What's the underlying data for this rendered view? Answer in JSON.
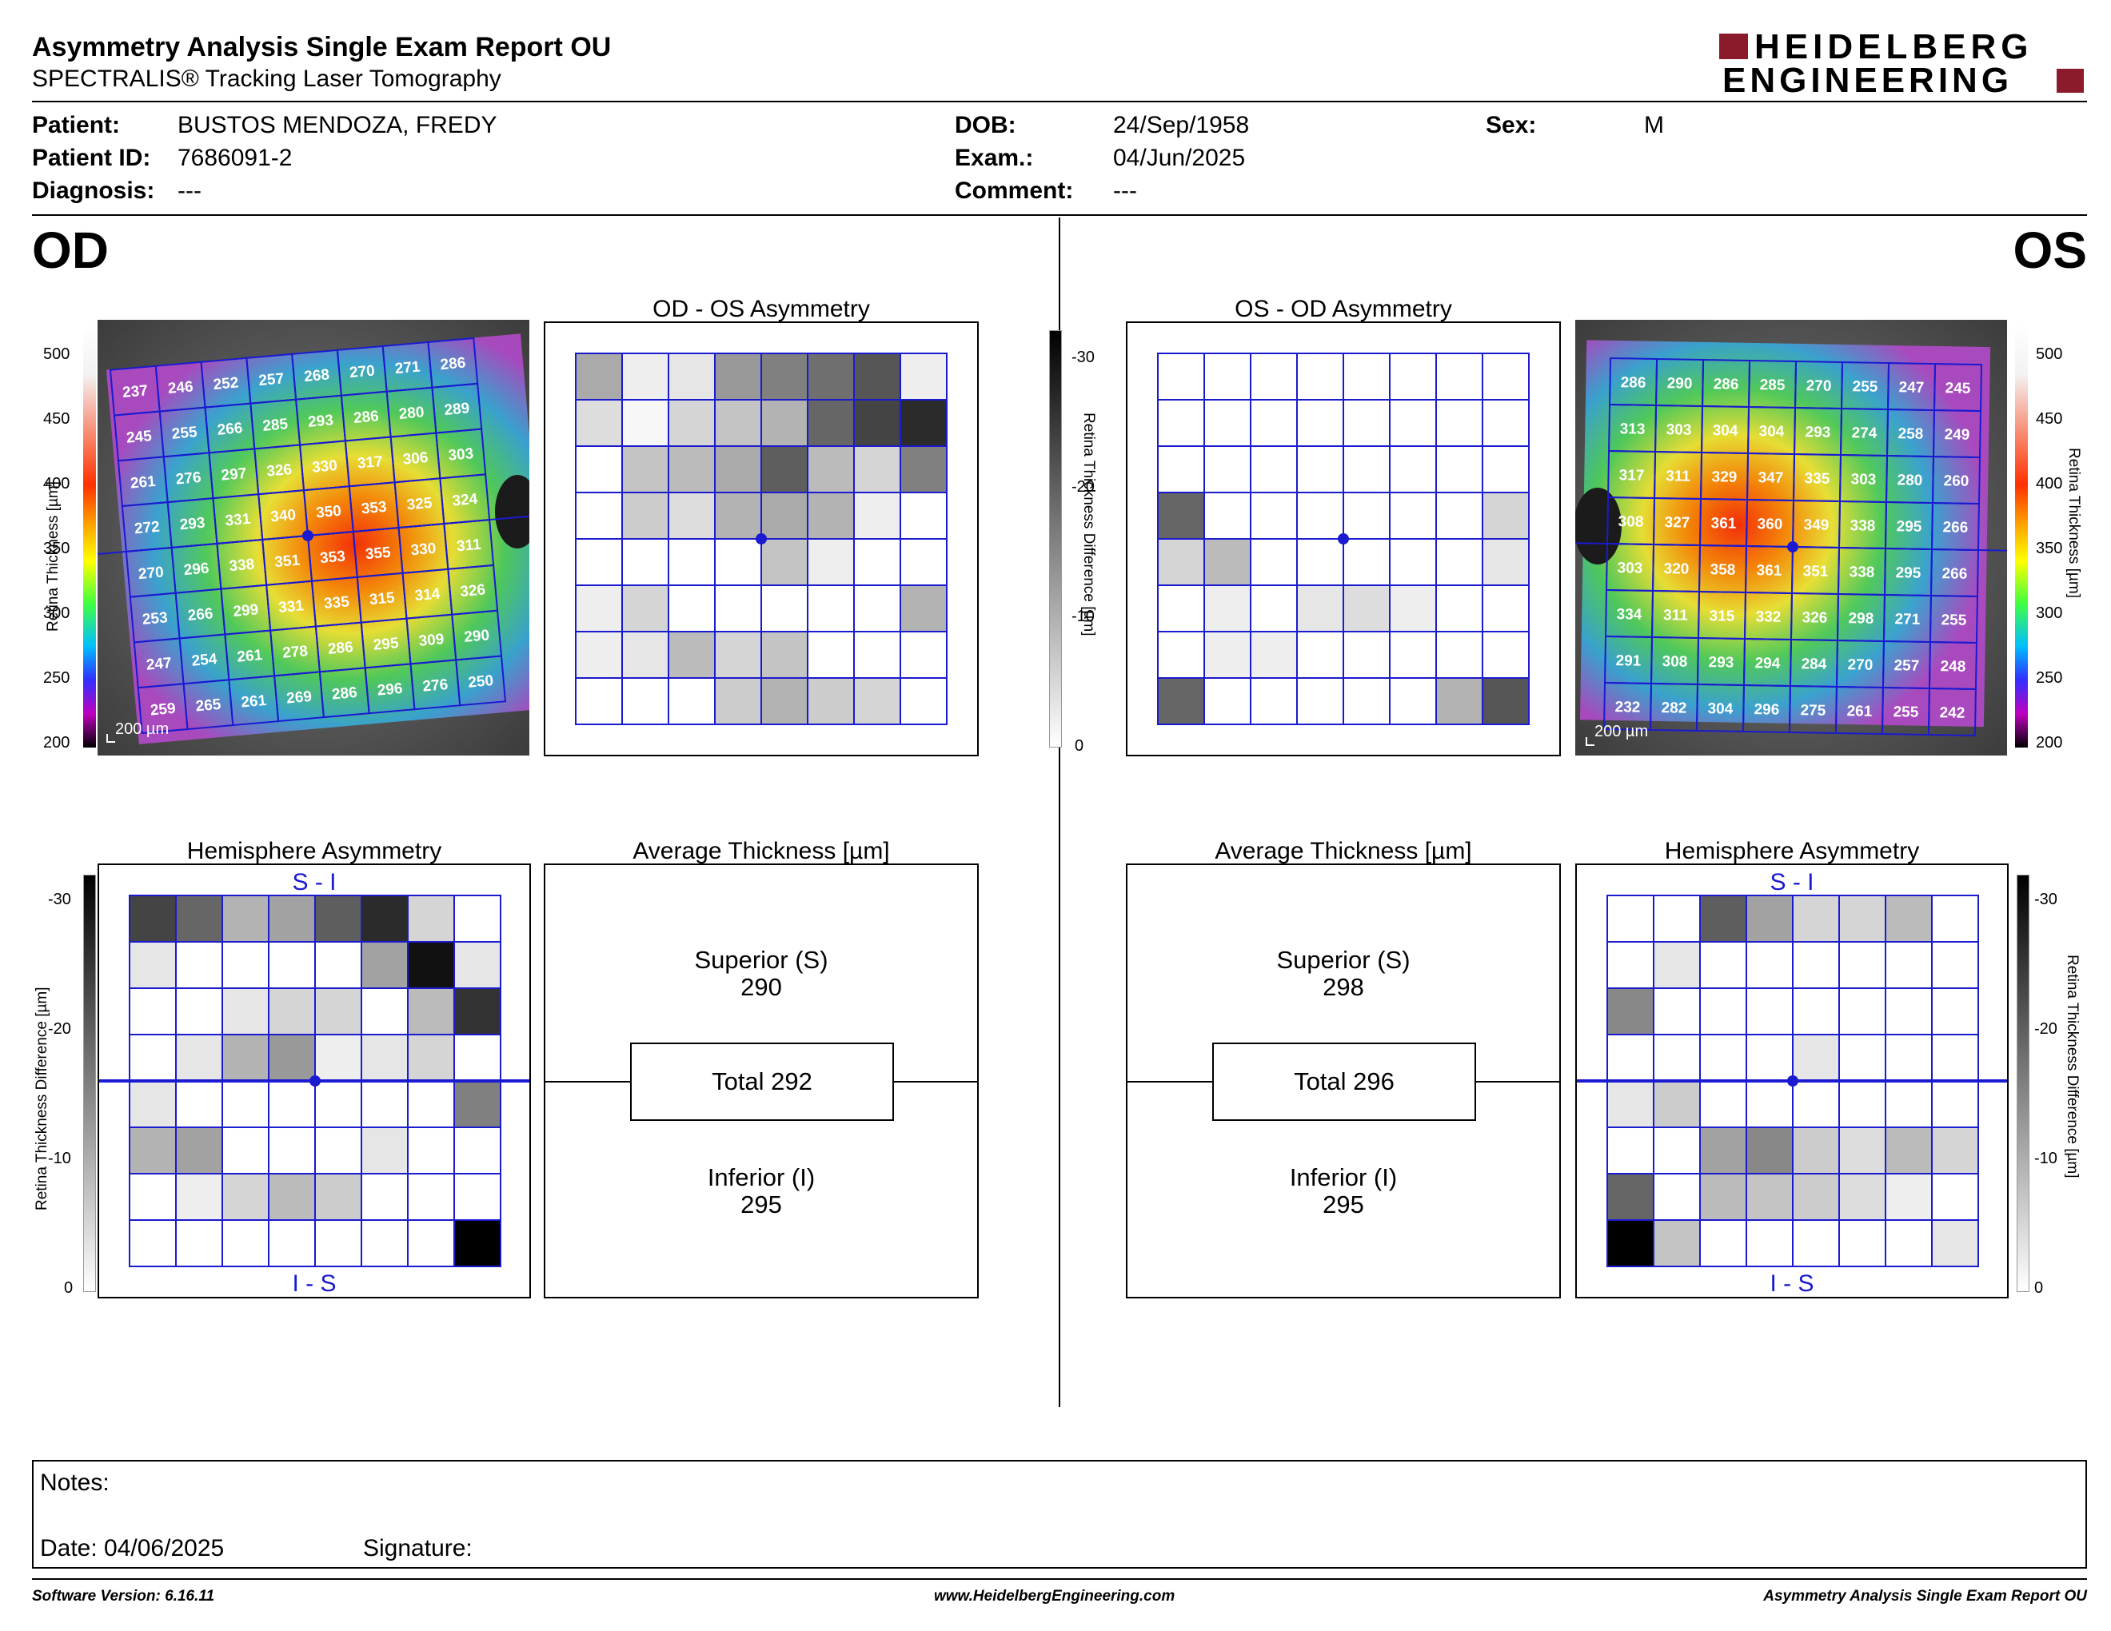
{
  "header": {
    "title": "Asymmetry Analysis Single Exam Report OU",
    "subtitle": "SPECTRALIS® Tracking Laser Tomography",
    "logo_line1": "HEIDELBERG",
    "logo_line2": "ENGINEERING",
    "brand_color": "#8b1a2b"
  },
  "patient": {
    "patient_label": "Patient:",
    "patient_value": "BUSTOS MENDOZA, FREDY",
    "id_label": "Patient ID:",
    "id_value": "7686091-2",
    "diagnosis_label": "Diagnosis:",
    "diagnosis_value": "---",
    "dob_label": "DOB:",
    "dob_value": "24/Sep/1958",
    "exam_label": "Exam.:",
    "exam_value": "04/Jun/2025",
    "comment_label": "Comment:",
    "comment_value": "---",
    "sex_label": "Sex:",
    "sex_value": "M"
  },
  "od": {
    "eye_label": "OD",
    "asym_title": "OD - OS Asymmetry",
    "hemi_title": "Hemisphere Asymmetry",
    "hemi_top": "S - I",
    "hemi_bottom": "I - S",
    "avg_title": "Average Thickness [µm]",
    "superior_label": "Superior (S)",
    "superior_value": "290",
    "total_text": "Total 292",
    "inferior_label": "Inferior (I)",
    "inferior_value": "295",
    "scale_text": "200 µm",
    "thickness": [
      [
        237,
        246,
        252,
        257,
        268,
        270,
        271,
        286
      ],
      [
        245,
        255,
        266,
        285,
        293,
        286,
        280,
        289
      ],
      [
        261,
        276,
        297,
        326,
        330,
        317,
        306,
        303
      ],
      [
        272,
        293,
        331,
        340,
        350,
        353,
        325,
        324
      ],
      [
        270,
        296,
        338,
        351,
        353,
        355,
        330,
        311
      ],
      [
        253,
        266,
        299,
        331,
        335,
        315,
        314,
        326
      ],
      [
        247,
        254,
        261,
        278,
        286,
        295,
        309,
        290
      ],
      [
        259,
        265,
        261,
        269,
        286,
        296,
        276,
        250
      ]
    ],
    "asym_gray": [
      [
        10,
        2,
        3,
        12,
        15,
        17,
        20,
        2
      ],
      [
        4,
        1,
        5,
        7,
        9,
        18,
        22,
        25
      ],
      [
        0,
        7,
        8,
        10,
        19,
        8,
        5,
        15
      ],
      [
        0,
        6,
        4,
        9,
        10,
        9,
        2,
        0
      ],
      [
        0,
        0,
        0,
        0,
        7,
        2,
        0,
        0
      ],
      [
        2,
        5,
        0,
        0,
        0,
        0,
        0,
        9
      ],
      [
        2,
        3,
        8,
        5,
        7,
        0,
        0,
        0
      ],
      [
        0,
        0,
        0,
        6,
        9,
        6,
        5,
        0
      ]
    ],
    "hemi_gray": [
      [
        22,
        18,
        9,
        11,
        19,
        25,
        5,
        0
      ],
      [
        3,
        0,
        0,
        0,
        0,
        11,
        28,
        3
      ],
      [
        0,
        0,
        3,
        5,
        5,
        0,
        8,
        24
      ],
      [
        0,
        3,
        9,
        12,
        2,
        3,
        5,
        0
      ],
      [
        3,
        0,
        0,
        0,
        0,
        0,
        0,
        15
      ],
      [
        9,
        11,
        0,
        0,
        0,
        3,
        0,
        0
      ],
      [
        0,
        2,
        5,
        8,
        6,
        0,
        0,
        0
      ],
      [
        0,
        0,
        0,
        0,
        0,
        0,
        0,
        30
      ]
    ]
  },
  "os": {
    "eye_label": "OS",
    "asym_title": "OS - OD Asymmetry",
    "hemi_title": "Hemisphere Asymmetry",
    "hemi_top": "S - I",
    "hemi_bottom": "I - S",
    "avg_title": "Average Thickness [µm]",
    "superior_label": "Superior (S)",
    "superior_value": "298",
    "total_text": "Total 296",
    "inferior_label": "Inferior (I)",
    "inferior_value": "295",
    "scale_text": "200 µm",
    "thickness": [
      [
        286,
        290,
        286,
        285,
        270,
        255,
        247,
        245
      ],
      [
        313,
        303,
        304,
        304,
        293,
        274,
        258,
        249
      ],
      [
        317,
        311,
        329,
        347,
        335,
        303,
        280,
        260
      ],
      [
        308,
        327,
        361,
        360,
        349,
        338,
        295,
        266
      ],
      [
        303,
        320,
        358,
        361,
        351,
        338,
        295,
        266
      ],
      [
        334,
        311,
        315,
        332,
        326,
        298,
        271,
        255
      ],
      [
        291,
        308,
        293,
        294,
        284,
        270,
        257,
        248
      ],
      [
        232,
        282,
        304,
        296,
        275,
        261,
        255,
        242
      ]
    ],
    "asym_gray": [
      [
        0,
        0,
        0,
        0,
        0,
        0,
        0,
        0
      ],
      [
        0,
        0,
        0,
        0,
        0,
        0,
        0,
        0
      ],
      [
        0,
        0,
        0,
        0,
        0,
        0,
        0,
        0
      ],
      [
        18,
        0,
        0,
        0,
        0,
        0,
        0,
        5
      ],
      [
        5,
        8,
        0,
        0,
        0,
        0,
        0,
        3
      ],
      [
        0,
        2,
        0,
        3,
        4,
        2,
        0,
        0
      ],
      [
        0,
        2,
        2,
        0,
        0,
        0,
        0,
        0
      ],
      [
        18,
        0,
        0,
        0,
        0,
        0,
        9,
        20
      ]
    ],
    "hemi_gray": [
      [
        0,
        0,
        19,
        11,
        5,
        5,
        8,
        0
      ],
      [
        0,
        3,
        0,
        0,
        0,
        0,
        0,
        0
      ],
      [
        14,
        0,
        0,
        0,
        0,
        0,
        0,
        0
      ],
      [
        0,
        0,
        0,
        0,
        3,
        0,
        0,
        0
      ],
      [
        3,
        6,
        0,
        0,
        0,
        0,
        0,
        0
      ],
      [
        0,
        0,
        11,
        14,
        6,
        4,
        8,
        5
      ],
      [
        18,
        0,
        8,
        7,
        6,
        4,
        2,
        0
      ],
      [
        30,
        7,
        0,
        0,
        0,
        0,
        0,
        3
      ]
    ]
  },
  "thickness_scale": {
    "ticks": [
      "500",
      "450",
      "400",
      "350",
      "300",
      "250",
      "200"
    ],
    "axis_label": "Retina  Thickness [µm]"
  },
  "diff_scale": {
    "ticks": [
      "-30",
      "-20",
      "-10",
      "0"
    ],
    "axis_label": "Retina Thickness Difference [µm]"
  },
  "notes": {
    "notes_label": "Notes:",
    "date_label": "Date: 04/06/2025",
    "signature_label": "Signature:"
  },
  "footer": {
    "software": "Software Version: 6.16.11",
    "website": "www.HeidelbergEngineering.com",
    "report": "Asymmetry Analysis Single Exam Report OU"
  }
}
